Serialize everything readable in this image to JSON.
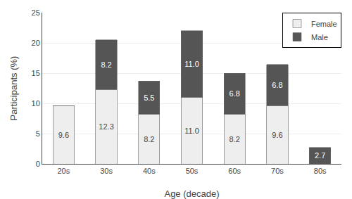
{
  "chart_data": {
    "type": "bar",
    "stacked": true,
    "categories": [
      "20s",
      "30s",
      "40s",
      "50s",
      "60s",
      "70s",
      "80s"
    ],
    "series": [
      {
        "name": "Female",
        "color": "#eeeeee",
        "values": [
          9.6,
          12.3,
          8.2,
          11.0,
          8.2,
          9.6,
          0.0
        ],
        "value_labels": [
          "9.6",
          "12.3",
          "8.2",
          "11.0",
          "8.2",
          "9.6",
          null
        ]
      },
      {
        "name": "Male",
        "color": "#555555",
        "values": [
          0.0,
          8.2,
          5.5,
          11.0,
          6.8,
          6.8,
          2.7
        ],
        "value_labels": [
          null,
          "8.2",
          "5.5",
          "11.0",
          "6.8",
          "6.8",
          "2.7"
        ]
      }
    ],
    "xlabel": "Age (decade)",
    "ylabel": "Participants (%)",
    "ylim": [
      0,
      25
    ],
    "yticks": [
      0,
      5,
      10,
      15,
      20,
      25
    ],
    "grid": true,
    "legend": "upper right",
    "data_labels": true
  }
}
